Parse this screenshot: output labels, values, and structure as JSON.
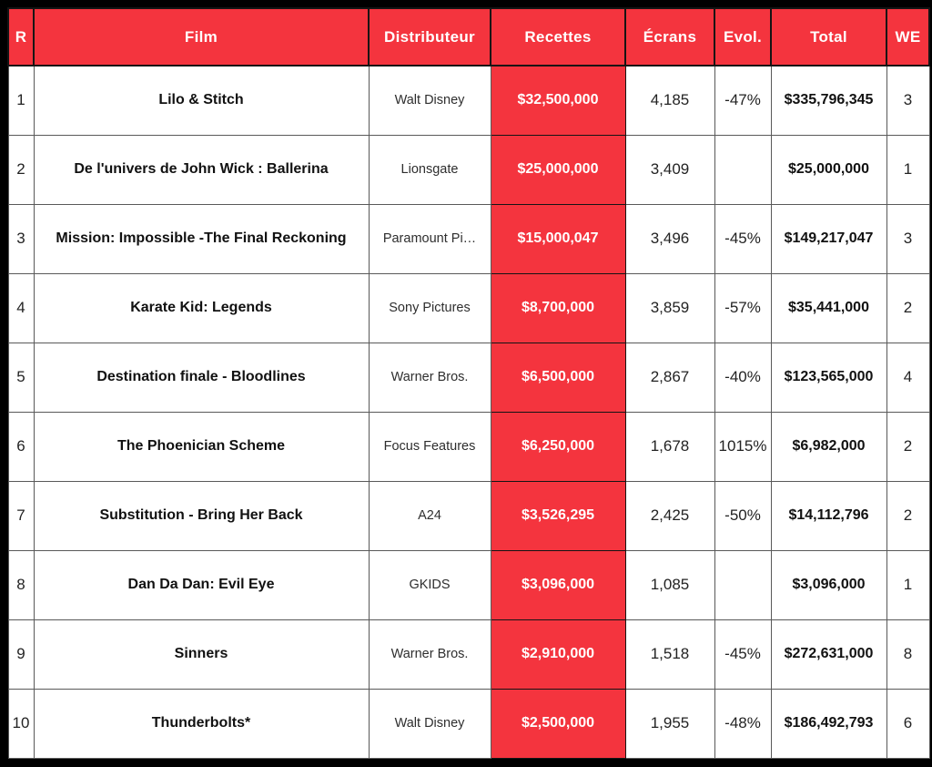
{
  "colors": {
    "header_bg": "#F4343E",
    "header_text": "#FFFFFF",
    "receipts_bg": "#F4343E",
    "receipts_text": "#FFFFFF",
    "frame": "#000000",
    "grid": "#595959"
  },
  "chart_data": {
    "type": "table",
    "title": "Box office top 10 (weekend receipts)",
    "columns": [
      "R",
      "Film",
      "Distributeur",
      "Recettes",
      "Écrans",
      "Evol.",
      "Total",
      "WE"
    ],
    "rows": [
      [
        "1",
        "Lilo & Stitch",
        "Walt Disney",
        "$32,500,000",
        "4,185",
        "-47%",
        "$335,796,345",
        "3"
      ],
      [
        "2",
        "De l'univers de John Wick : Ballerina",
        "Lionsgate",
        "$25,000,000",
        "3,409",
        "",
        "$25,000,000",
        "1"
      ],
      [
        "3",
        "Mission: Impossible -The Final Reckoning",
        "Paramount Pi…",
        "$15,000,047",
        "3,496",
        "-45%",
        "$149,217,047",
        "3"
      ],
      [
        "4",
        "Karate Kid: Legends",
        "Sony Pictures",
        "$8,700,000",
        "3,859",
        "-57%",
        "$35,441,000",
        "2"
      ],
      [
        "5",
        "Destination finale - Bloodlines",
        "Warner Bros.",
        "$6,500,000",
        "2,867",
        "-40%",
        "$123,565,000",
        "4"
      ],
      [
        "6",
        "The Phoenician Scheme",
        "Focus Features",
        "$6,250,000",
        "1,678",
        "1015%",
        "$6,982,000",
        "2"
      ],
      [
        "7",
        "Substitution - Bring Her Back",
        "A24",
        "$3,526,295",
        "2,425",
        "-50%",
        "$14,112,796",
        "2"
      ],
      [
        "8",
        "Dan Da Dan: Evil Eye",
        "GKIDS",
        "$3,096,000",
        "1,085",
        "",
        "$3,096,000",
        "1"
      ],
      [
        "9",
        "Sinners",
        "Warner Bros.",
        "$2,910,000",
        "1,518",
        "-45%",
        "$272,631,000",
        "8"
      ],
      [
        "10",
        "Thunderbolts*",
        "Walt Disney",
        "$2,500,000",
        "1,955",
        "-48%",
        "$186,492,793",
        "6"
      ]
    ]
  }
}
